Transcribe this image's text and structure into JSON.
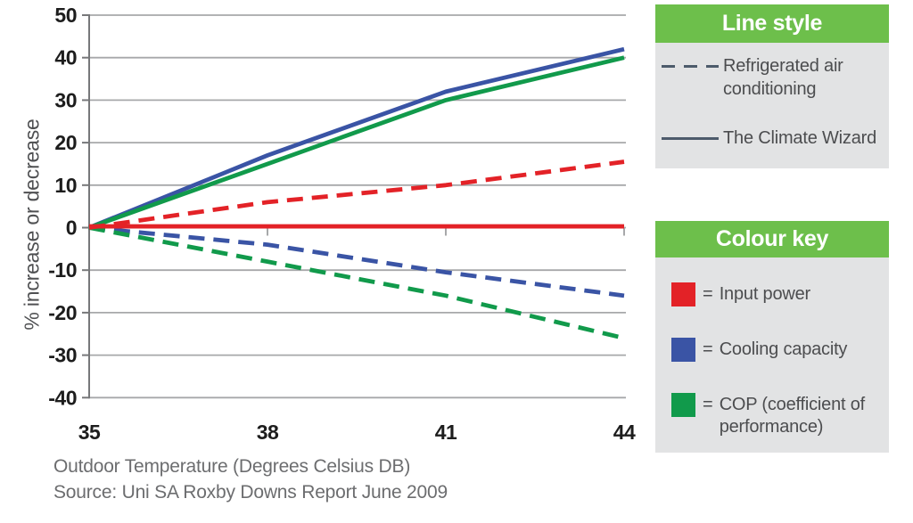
{
  "chart_data": {
    "type": "line",
    "x": [
      35,
      38,
      41,
      44
    ],
    "xticks": [
      35,
      38,
      41,
      44
    ],
    "yticks": [
      50,
      40,
      30,
      20,
      10,
      0,
      -10,
      -20,
      -30,
      -40
    ],
    "ylim": [
      -40,
      50
    ],
    "xlim": [
      35,
      44
    ],
    "grid": true,
    "ylabel": "% increase or decrease",
    "xlabel": "Outdoor Temperature (Degrees Celsius DB)",
    "source": "Source: Uni SA Roxby Downs Report June 2009",
    "series": [
      {
        "id": "climate-wizard-cooling-capacity",
        "label": "The Climate Wizard - Cooling capacity",
        "color": "blue",
        "style": "solid",
        "values": [
          0,
          17,
          32,
          42
        ]
      },
      {
        "id": "climate-wizard-cop",
        "label": "The Climate Wizard - COP",
        "color": "green",
        "style": "solid",
        "values": [
          0,
          15,
          30,
          40
        ]
      },
      {
        "id": "refrigerated-ac-cooling-capacity",
        "label": "Refrigerated air conditioning - Cooling capacity",
        "color": "blue",
        "style": "dashed",
        "values": [
          0,
          -4,
          -10.5,
          -16
        ]
      },
      {
        "id": "refrigerated-ac-cop",
        "label": "Refrigerated air conditioning - COP",
        "color": "green",
        "style": "dashed",
        "values": [
          0,
          -8,
          -16,
          -26
        ]
      },
      {
        "id": "refrigerated-ac-input-power",
        "label": "Refrigerated air conditioning - Input power",
        "color": "red",
        "style": "dashed",
        "values": [
          0,
          6,
          10,
          15.5
        ]
      },
      {
        "id": "climate-wizard-input-power",
        "label": "The Climate Wizard - Input power",
        "color": "red",
        "style": "solid",
        "values": [
          0.3,
          0.3,
          0.3,
          0.3
        ]
      }
    ]
  },
  "legend": {
    "line_style": {
      "title": "Line style",
      "items": [
        {
          "style": "dashed",
          "label": "Refrigerated air conditioning"
        },
        {
          "style": "solid",
          "label": "The Climate Wizard"
        }
      ]
    },
    "colour_key": {
      "title": "Colour key",
      "items": [
        {
          "color": "red",
          "prefix": "=",
          "label": "Input power"
        },
        {
          "color": "blue",
          "prefix": "=",
          "label": "Cooling capacity"
        },
        {
          "color": "green",
          "prefix": "=",
          "label": "COP (coefficient of performance)"
        }
      ]
    }
  },
  "theme": {
    "red": "#e32227",
    "blue": "#3a54a5",
    "green": "#119a4b",
    "header_green": "#6dbf4b",
    "panel_bg": "#e2e3e4",
    "slate": "#4d5b6b",
    "grid": "#a7a8aa",
    "axis": "#77787a",
    "tick_text": "#1d1d1d",
    "axis_title_text": "#4f5052",
    "caption_text": "#6c6d6f",
    "legend_text": "#4c4d4f"
  }
}
